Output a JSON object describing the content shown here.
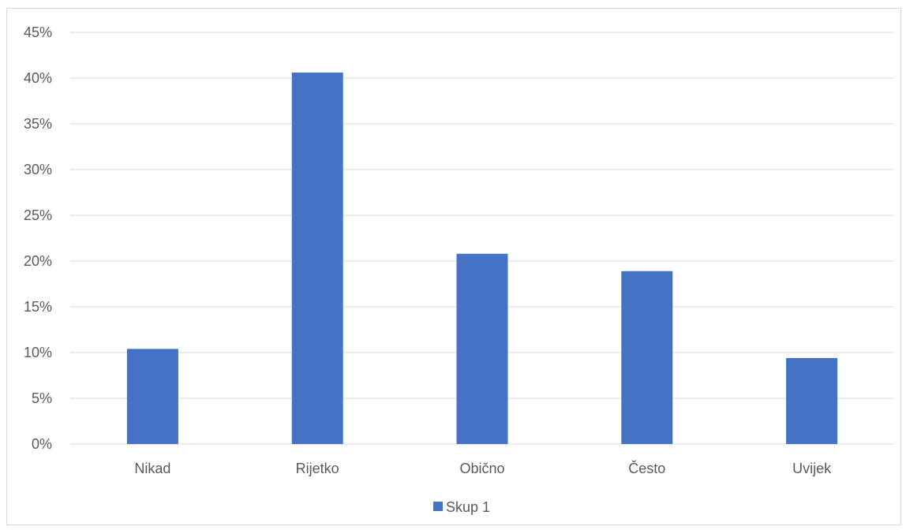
{
  "chart_data": {
    "type": "bar",
    "title": "",
    "xlabel": "",
    "ylabel": "",
    "categories": [
      "Nikad",
      "Rijetko",
      "Obično",
      "Često",
      "Uvijek"
    ],
    "series": [
      {
        "name": "Skup 1",
        "color": "#4472c4",
        "values": [
          10.4,
          40.6,
          20.8,
          18.9,
          9.4
        ]
      }
    ],
    "ylim": [
      0,
      45
    ],
    "yticks": [
      0,
      5,
      10,
      15,
      20,
      25,
      30,
      35,
      40,
      45
    ],
    "ytick_labels": [
      "0%",
      "5%",
      "10%",
      "15%",
      "20%",
      "25%",
      "30%",
      "35%",
      "40%",
      "45%"
    ],
    "y_unit": "%",
    "grid": true,
    "legend_position": "bottom"
  }
}
